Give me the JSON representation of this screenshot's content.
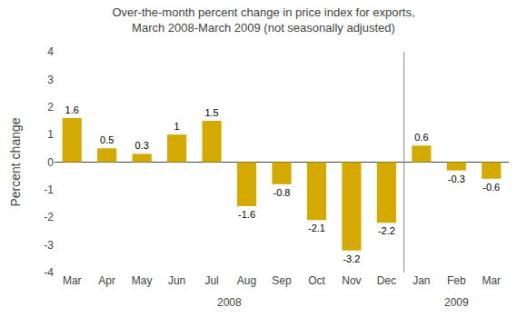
{
  "chart_data": {
    "type": "bar",
    "title": "Over-the-month percent change in price index for exports,\nMarch 2008-March 2009 (not seasonally adjusted)",
    "ylabel": "Percent change",
    "categories": [
      "Mar",
      "Apr",
      "May",
      "Jun",
      "Jul",
      "Aug",
      "Sep",
      "Oct",
      "Nov",
      "Dec",
      "Jan",
      "Feb",
      "Mar"
    ],
    "values": [
      1.6,
      0.5,
      0.3,
      1.0,
      1.5,
      -1.6,
      -0.8,
      -2.1,
      -3.2,
      -2.2,
      0.6,
      -0.3,
      -0.6
    ],
    "color": "#D4AA00",
    "ylim": [
      -4,
      4
    ],
    "yticks": [
      -4,
      -3,
      -2,
      -1,
      0,
      1,
      2,
      3,
      4
    ],
    "grid": false,
    "data_labels": true,
    "annotations": [
      {
        "text": "2008",
        "x": 4.5
      },
      {
        "text": "2009",
        "x": 11.0
      }
    ]
  }
}
